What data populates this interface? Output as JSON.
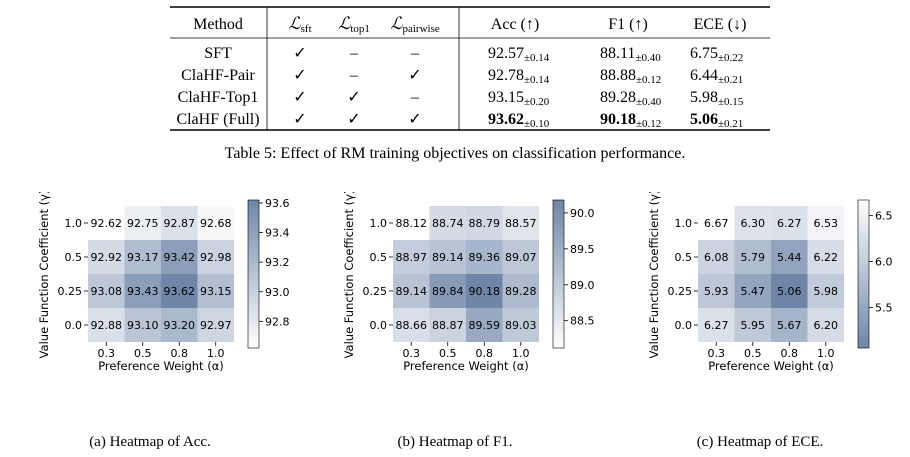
{
  "table": {
    "headers": [
      "Method",
      "ℒ",
      "sft",
      "ℒ",
      "top1",
      "ℒ",
      "pairwise",
      "Acc (↑)",
      "F1 (↑)",
      "ECE (↓)"
    ],
    "rows": [
      {
        "method": "SFT",
        "sft": "✓",
        "top1": "–",
        "pair": "–",
        "acc": "92.57",
        "acc_sd": "±0.14",
        "f1": "88.11",
        "f1_sd": "±0.40",
        "ece": "6.75",
        "ece_sd": "±0.22"
      },
      {
        "method": "ClaHF-Pair",
        "sft": "✓",
        "top1": "–",
        "pair": "✓",
        "acc": "92.78",
        "acc_sd": "±0.14",
        "f1": "88.88",
        "f1_sd": "±0.12",
        "ece": "6.44",
        "ece_sd": "±0.21"
      },
      {
        "method": "ClaHF-Top1",
        "sft": "✓",
        "top1": "✓",
        "pair": "–",
        "acc": "93.15",
        "acc_sd": "±0.20",
        "f1": "89.28",
        "f1_sd": "±0.40",
        "ece": "5.98",
        "ece_sd": "±0.15"
      },
      {
        "method": "ClaHF (Full)",
        "sft": "✓",
        "top1": "✓",
        "pair": "✓",
        "acc": "93.62",
        "acc_sd": "±0.10",
        "f1": "90.18",
        "f1_sd": "±0.12",
        "ece": "5.06",
        "ece_sd": "±0.21"
      }
    ],
    "caption": "Table 5: Effect of RM training objectives on classification performance."
  },
  "chart_data": [
    {
      "type": "heatmap",
      "caption": "(a) Heatmap of Acc.",
      "xlabel": "Preference Weight (α)",
      "ylabel": "Value Function Coefficient (γ)",
      "x": [
        "0.3",
        "0.5",
        "0.8",
        "1.0"
      ],
      "y": [
        "1.0",
        "0.5",
        "0.25",
        "0.0"
      ],
      "values": [
        [
          92.62,
          92.75,
          92.87,
          92.68
        ],
        [
          92.92,
          93.17,
          93.42,
          92.98
        ],
        [
          93.08,
          93.43,
          93.62,
          93.15
        ],
        [
          92.88,
          93.1,
          93.2,
          92.97
        ]
      ],
      "labels": [
        [
          "92.62",
          "92.75",
          "92.87",
          "92.68"
        ],
        [
          "92.92",
          "93.17",
          "93.42",
          "92.98"
        ],
        [
          "93.08",
          "93.43",
          "93.62",
          "93.15"
        ],
        [
          "92.88",
          "93.10",
          "93.20",
          "92.97"
        ]
      ],
      "colorbar": {
        "ticks": [
          93.6,
          93.4,
          93.2,
          93.0,
          92.8
        ],
        "tick_labels": [
          "93.6",
          "93.4",
          "93.2",
          "93.0",
          "92.8"
        ],
        "min": 92.62,
        "max": 93.62
      },
      "colormap": {
        "low": "#ffffff",
        "high": "#6f86a8"
      }
    },
    {
      "type": "heatmap",
      "caption": "(b) Heatmap of F1.",
      "xlabel": "Preference Weight (α)",
      "ylabel": "Value Function Coefficient (γ)",
      "x": [
        "0.3",
        "0.5",
        "0.8",
        "1.0"
      ],
      "y": [
        "1.0",
        "0.5",
        "0.25",
        "0.0"
      ],
      "values": [
        [
          88.12,
          88.74,
          88.79,
          88.57
        ],
        [
          88.97,
          89.14,
          89.36,
          89.07
        ],
        [
          89.14,
          89.84,
          90.18,
          89.28
        ],
        [
          88.66,
          88.87,
          89.59,
          89.03
        ]
      ],
      "labels": [
        [
          "88.12",
          "88.74",
          "88.79",
          "88.57"
        ],
        [
          "88.97",
          "89.14",
          "89.36",
          "89.07"
        ],
        [
          "89.14",
          "89.84",
          "90.18",
          "89.28"
        ],
        [
          "88.66",
          "88.87",
          "89.59",
          "89.03"
        ]
      ],
      "colorbar": {
        "ticks": [
          90.0,
          89.5,
          89.0,
          88.5
        ],
        "tick_labels": [
          "90.0",
          "89.5",
          "89.0",
          "88.5"
        ],
        "min": 88.12,
        "max": 90.18
      },
      "colormap": {
        "low": "#ffffff",
        "high": "#6f86a8"
      }
    },
    {
      "type": "heatmap",
      "caption": "(c) Heatmap of ECE.",
      "xlabel": "Preference Weight (α)",
      "ylabel": "Value Function Coefficient (γ)",
      "x": [
        "0.3",
        "0.5",
        "0.8",
        "1.0"
      ],
      "y": [
        "1.0",
        "0.5",
        "0.25",
        "0.0"
      ],
      "values": [
        [
          6.67,
          6.3,
          6.27,
          6.53
        ],
        [
          6.08,
          5.79,
          5.44,
          6.22
        ],
        [
          5.93,
          5.47,
          5.06,
          5.98
        ],
        [
          6.27,
          5.95,
          5.67,
          6.2
        ]
      ],
      "labels": [
        [
          "6.67",
          "6.30",
          "6.27",
          "6.53"
        ],
        [
          "6.08",
          "5.79",
          "5.44",
          "6.22"
        ],
        [
          "5.93",
          "5.47",
          "5.06",
          "5.98"
        ],
        [
          "6.27",
          "5.95",
          "5.67",
          "6.20"
        ]
      ],
      "colorbar": {
        "ticks": [
          6.5,
          6.0,
          5.5
        ],
        "tick_labels": [
          "6.5",
          "6.0",
          "5.5"
        ],
        "min": 5.06,
        "max": 6.67,
        "reversed": true
      },
      "colormap": {
        "low": "#6f86a8",
        "high": "#ffffff"
      }
    }
  ]
}
